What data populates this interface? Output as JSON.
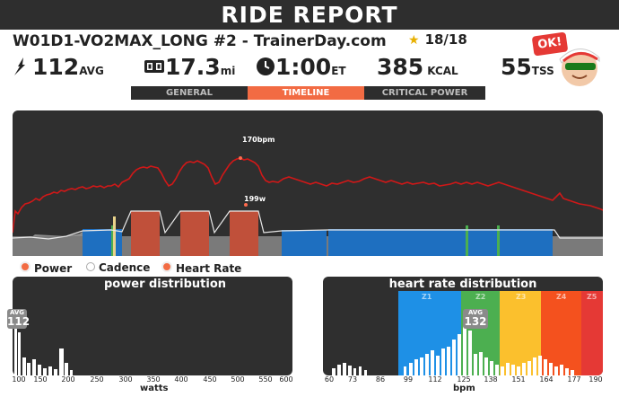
{
  "report": {
    "title": "RIDE REPORT",
    "workout_name": "W01D1-VO2MAX_LONG #2 - TrainerDay.com",
    "rating": "18/18"
  },
  "stats": {
    "power": {
      "value": "112",
      "unit": "AVG",
      "icon": "lightning-icon"
    },
    "distance": {
      "value": "17.3",
      "unit": "mi",
      "icon": "odometer-icon"
    },
    "time": {
      "value": "1:00",
      "unit": "ET",
      "icon": "clock-icon"
    },
    "energy": {
      "value": "385",
      "unit": "KCAL"
    },
    "tss": {
      "value": "55",
      "unit": "TSS"
    }
  },
  "badge": {
    "text": "OK!"
  },
  "tabs": [
    {
      "label": "GENERAL",
      "active": false
    },
    {
      "label": "TIMELINE",
      "active": true
    },
    {
      "label": "CRITICAL POWER",
      "active": false
    }
  ],
  "timeline": {
    "max_hr_label": "170bpm",
    "max_power_label": "199w"
  },
  "legend": [
    {
      "label": "Power",
      "color": "#f26b43"
    },
    {
      "label": "Cadence",
      "color": "#ffffff"
    },
    {
      "label": "Heart Rate",
      "color": "#f26b43"
    }
  ],
  "power_distribution": {
    "title": "power distribution",
    "avg_label": "AVG",
    "avg_value": "112",
    "x_ticks": [
      "100",
      "150",
      "200",
      "250",
      "300",
      "350",
      "400",
      "450",
      "500",
      "550",
      "600"
    ],
    "x_label": "watts"
  },
  "hr_distribution": {
    "title": "heart rate distribution",
    "avg_label": "AVG",
    "avg_value": "132",
    "x_ticks": [
      "60",
      "73",
      "86",
      "99",
      "112",
      "125",
      "138",
      "151",
      "164",
      "177",
      "190"
    ],
    "x_label": "bpm",
    "zones": [
      {
        "label": "Z1",
        "color": "#1e90e6"
      },
      {
        "label": "Z2",
        "color": "#4caf50"
      },
      {
        "label": "Z3",
        "color": "#fbc02d"
      },
      {
        "label": "Z4",
        "color": "#f4511e"
      },
      {
        "label": "Z5",
        "color": "#e53935"
      }
    ]
  },
  "colors": {
    "accent": "#f26b43",
    "panel": "#2f2f2f",
    "hr_line": "#d01818",
    "zone_blue": "#1e6fc0",
    "zone_red": "#c0503a"
  }
}
